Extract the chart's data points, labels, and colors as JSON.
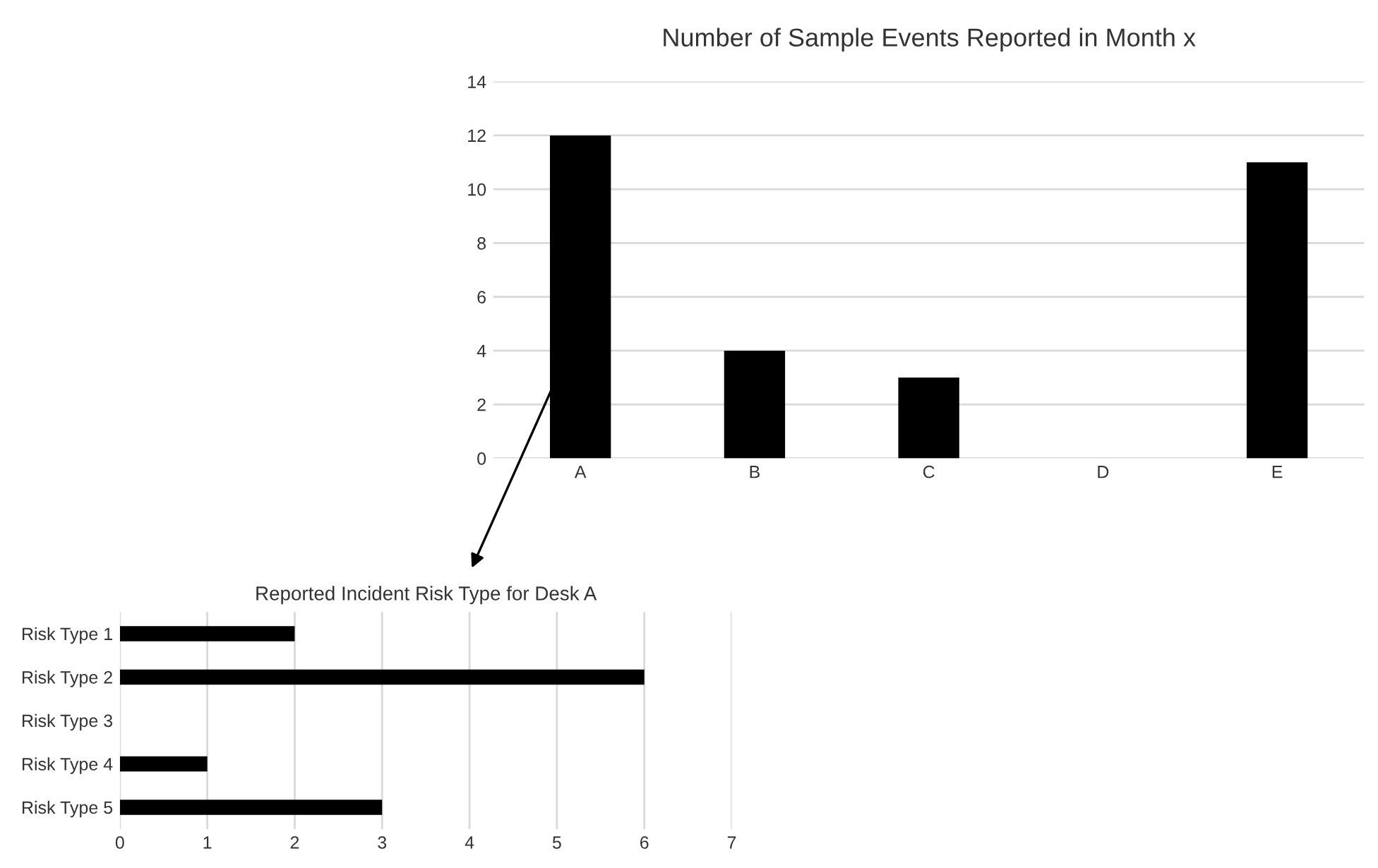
{
  "chart_data": [
    {
      "type": "bar",
      "title": "Number of Sample Events Reported in Month x",
      "categories": [
        "A",
        "B",
        "C",
        "D",
        "E"
      ],
      "values": [
        12,
        4,
        3,
        0,
        11
      ],
      "color": "#000000",
      "ylim": [
        0,
        14
      ],
      "yticks": [
        0,
        2,
        4,
        6,
        8,
        10,
        12,
        14
      ],
      "grid": "y"
    },
    {
      "type": "bar",
      "orientation": "horizontal",
      "title": "Reported Incident Risk Type for Desk A",
      "categories": [
        "Risk Type 1",
        "Risk Type 2",
        "Risk Type 3",
        "Risk Type 4",
        "Risk Type 5"
      ],
      "values": [
        2,
        6,
        0,
        1,
        3
      ],
      "color": "#000000",
      "xlim": [
        0,
        7
      ],
      "xticks": [
        0,
        1,
        2,
        3,
        4,
        5,
        6,
        7
      ],
      "grid": "x"
    }
  ]
}
